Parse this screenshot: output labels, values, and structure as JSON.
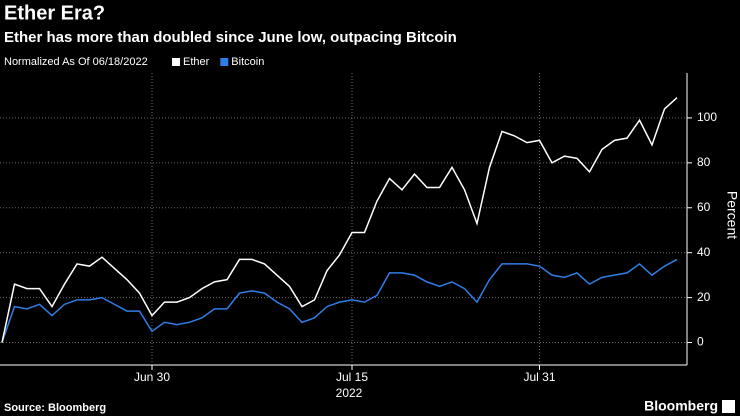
{
  "chart_data": {
    "type": "line",
    "title": "Ether Era?",
    "subtitle": "Ether has more than doubled since June low, outpacing Bitcoin",
    "legend_note": "Normalized As Of 06/18/2022",
    "y_label": "Percent",
    "x_label": "2022",
    "source": "Source: Bloomberg",
    "brand": "Bloomberg",
    "categories": [
      null,
      null,
      null,
      null,
      null,
      null,
      null,
      null,
      null,
      null,
      null,
      null,
      "Jun 30",
      null,
      null,
      null,
      null,
      null,
      null,
      null,
      null,
      null,
      null,
      null,
      null,
      null,
      null,
      null,
      "Jul 15",
      null,
      null,
      null,
      null,
      null,
      null,
      null,
      null,
      null,
      null,
      null,
      null,
      null,
      null,
      "Jul 31",
      null,
      null,
      null,
      null,
      null,
      null,
      null,
      null,
      null,
      null,
      null
    ],
    "series": [
      {
        "name": "Ether",
        "color": "#ffffff",
        "values": [
          0,
          26,
          24,
          24,
          16,
          26,
          35,
          34,
          38,
          33,
          28,
          22,
          12,
          18,
          18,
          20,
          24,
          27,
          28,
          37,
          37,
          35,
          30,
          25,
          16,
          19,
          32,
          39,
          49,
          49,
          63,
          73,
          68,
          75,
          69,
          69,
          78,
          68,
          53,
          78,
          94,
          92,
          89,
          90,
          80,
          83,
          82,
          76,
          86,
          90,
          91,
          99,
          88,
          104,
          109
        ]
      },
      {
        "name": "Bitcoin",
        "color": "#2f7ee6",
        "values": [
          0,
          16,
          15,
          17,
          12,
          17,
          19,
          19,
          20,
          17,
          14,
          14,
          5,
          9,
          8,
          9,
          11,
          15,
          15,
          22,
          23,
          22,
          18,
          15,
          9,
          11,
          16,
          18,
          19,
          18,
          21,
          31,
          31,
          30,
          27,
          25,
          27,
          24,
          18,
          28,
          35,
          35,
          35,
          34,
          30,
          29,
          31,
          26,
          29,
          30,
          31,
          35,
          30,
          34,
          37
        ]
      }
    ],
    "ylim": [
      -10,
      120
    ],
    "yticks": [
      0,
      20,
      40,
      60,
      80,
      100
    ],
    "grid": true
  }
}
